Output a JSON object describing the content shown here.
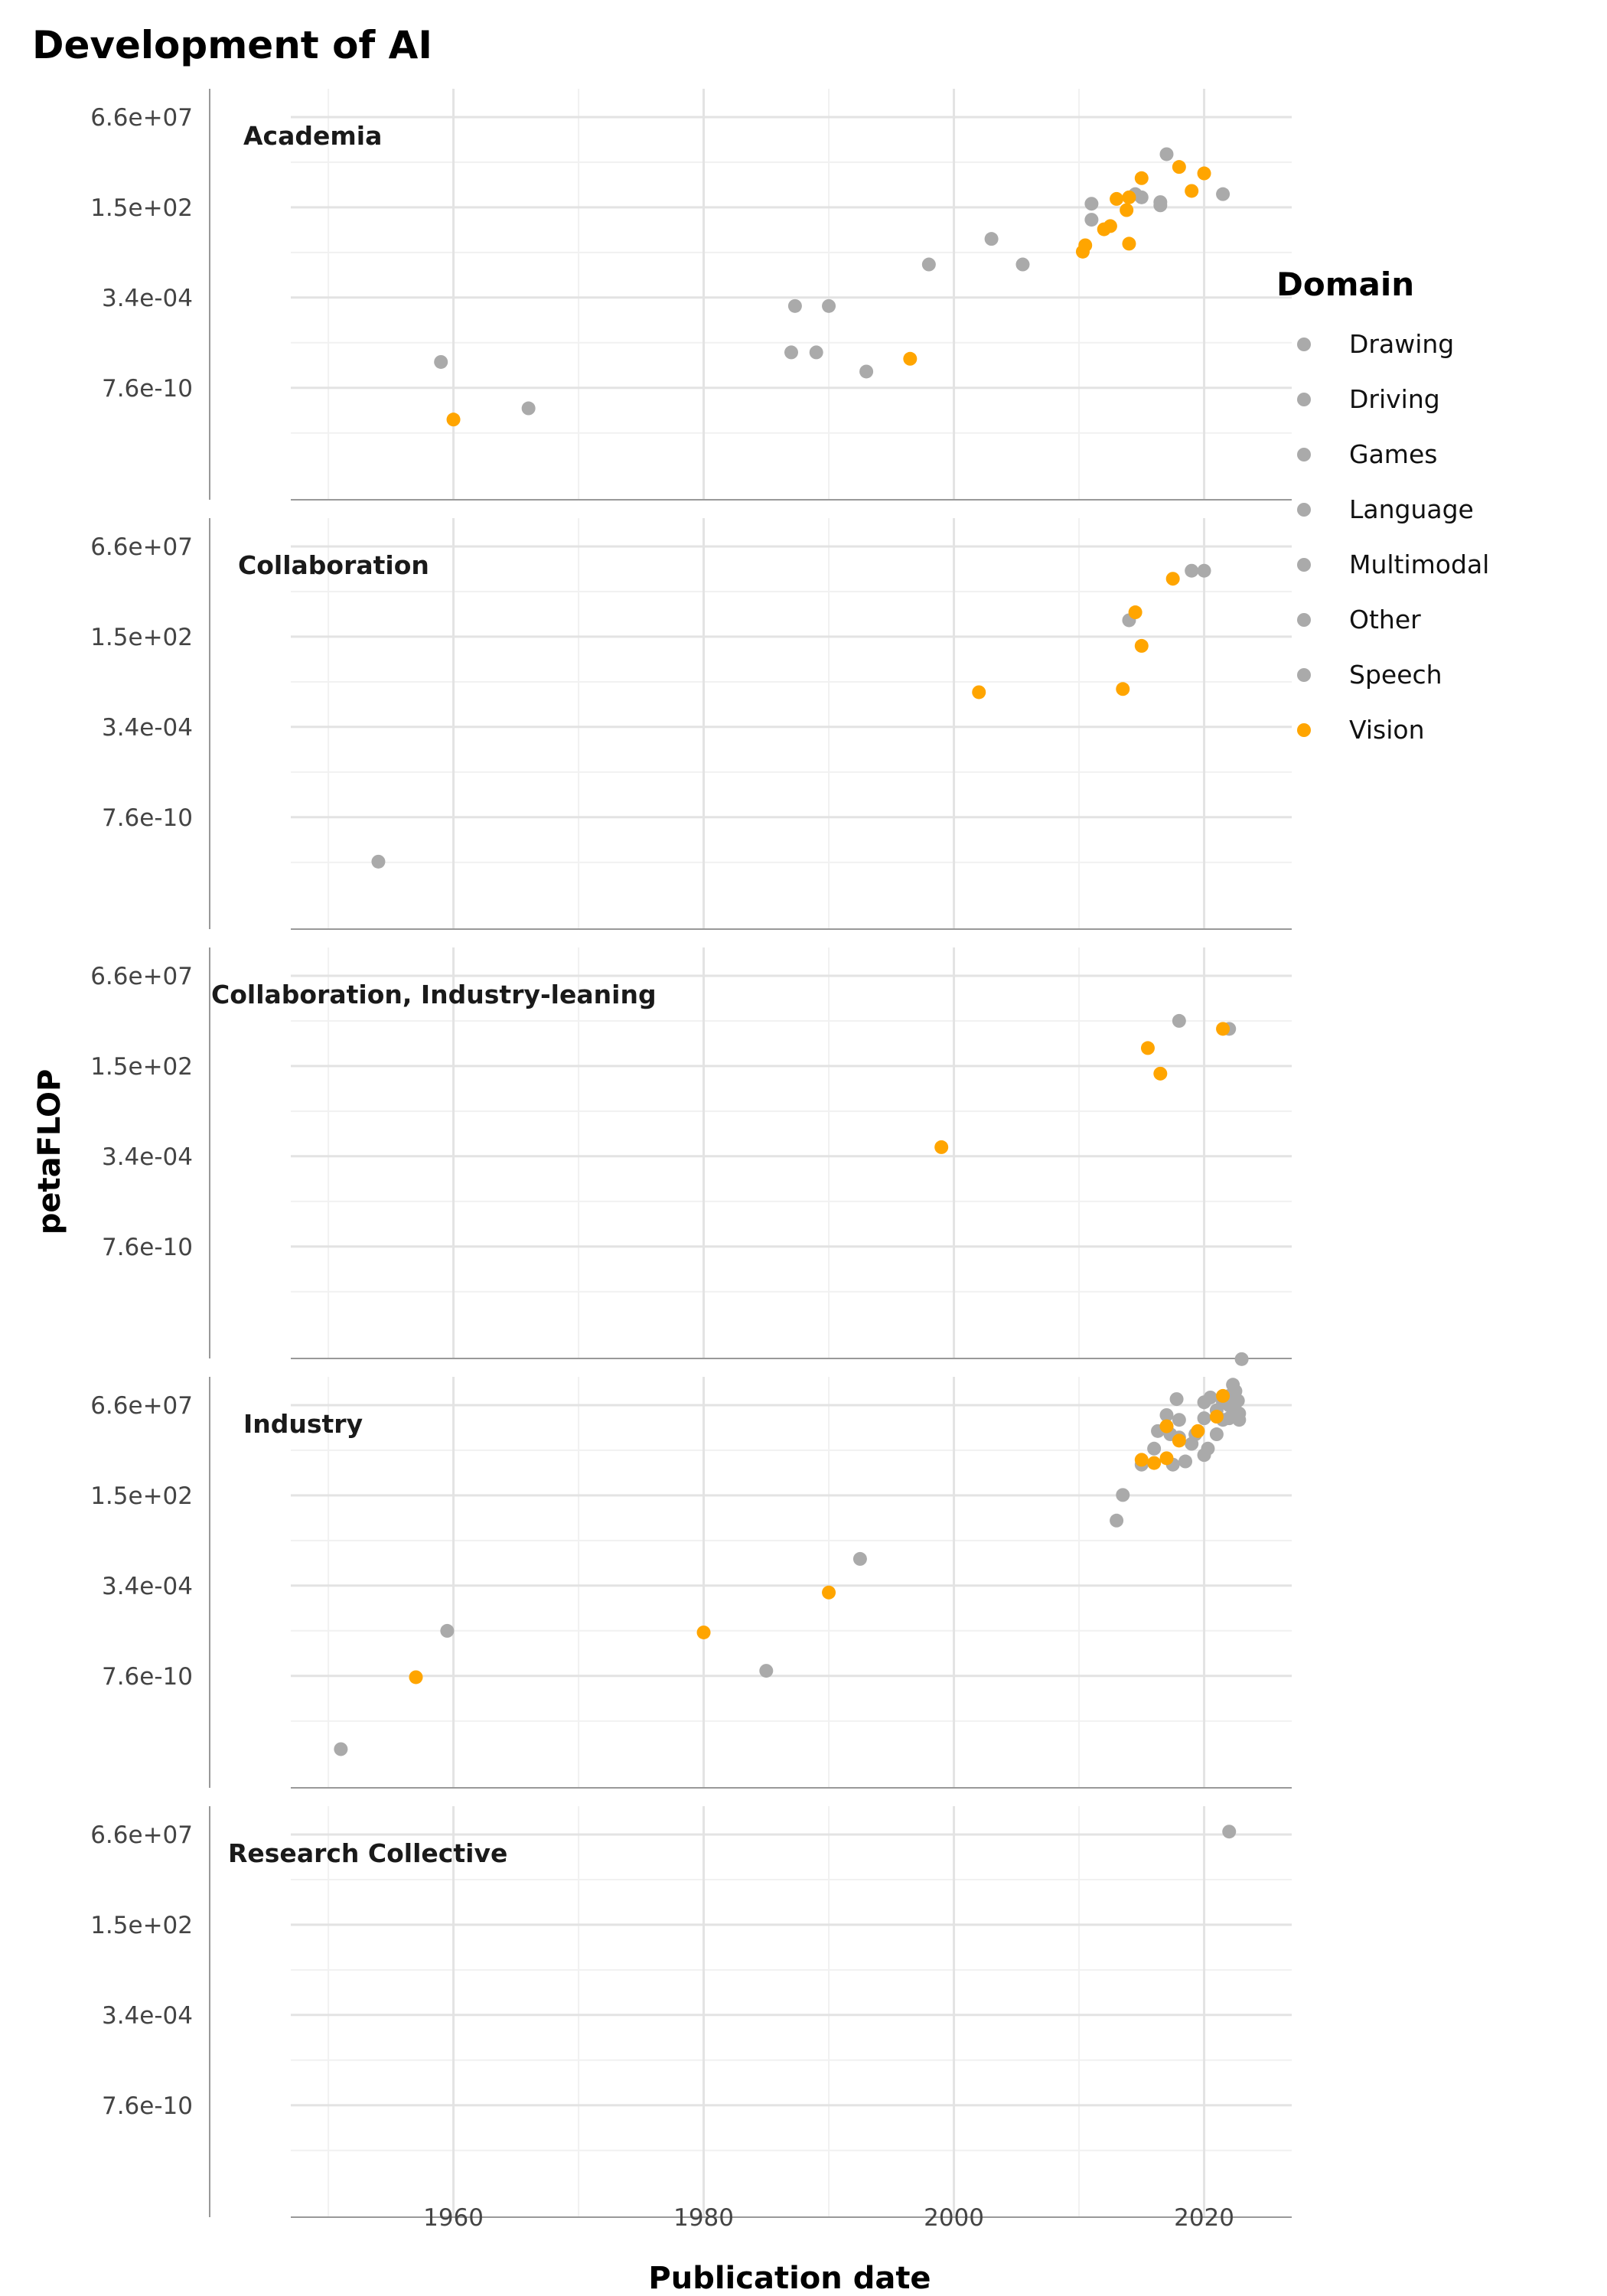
{
  "chart_data": {
    "type": "scatter",
    "title": "Development of AI",
    "xlabel": "Publication date",
    "ylabel": "petaFLOP",
    "y_scale": "log10",
    "xlim": [
      1947,
      2027
    ],
    "x_ticks": [
      1960,
      1980,
      2000,
      2020
    ],
    "y_ticks": [
      {
        "label": "7.6e-10",
        "log10": -9.119
      },
      {
        "label": "3.4e-04",
        "log10": -3.469
      },
      {
        "label": "1.5e+02",
        "log10": 2.176
      },
      {
        "label": "6.6e+07",
        "log10": 7.82
      }
    ],
    "grid": true,
    "legend": {
      "title": "Domain",
      "position": "right",
      "entries": [
        {
          "name": "Drawing",
          "color": "#AAAAAA"
        },
        {
          "name": "Driving",
          "color": "#AAAAAA"
        },
        {
          "name": "Games",
          "color": "#AAAAAA"
        },
        {
          "name": "Language",
          "color": "#AAAAAA"
        },
        {
          "name": "Multimodal",
          "color": "#AAAAAA"
        },
        {
          "name": "Other",
          "color": "#AAAAAA"
        },
        {
          "name": "Speech",
          "color": "#AAAAAA"
        },
        {
          "name": "Vision",
          "color": "#FFA500"
        }
      ]
    },
    "colors": {
      "grey": "#AAAAAA",
      "vision": "#FFA500"
    },
    "facets": [
      {
        "label": "Academia",
        "grey_points": [
          [
            1959,
            -7.5
          ],
          [
            1966,
            -10.4
          ],
          [
            1987,
            -6.9
          ],
          [
            1987.3,
            -4.0
          ],
          [
            1989,
            -6.9
          ],
          [
            1990,
            -4.0
          ],
          [
            1993,
            -8.1
          ],
          [
            1998,
            -1.4
          ],
          [
            2003,
            0.2
          ],
          [
            2005.5,
            -1.4
          ],
          [
            2011,
            1.4
          ],
          [
            2011,
            2.4
          ],
          [
            2014.5,
            3.0
          ],
          [
            2015,
            2.8
          ],
          [
            2016.5,
            2.3
          ],
          [
            2016.5,
            2.5
          ],
          [
            2017,
            5.5
          ],
          [
            2021.5,
            3.0
          ]
        ],
        "vision_points": [
          [
            1960,
            -11.1
          ],
          [
            1996.5,
            -7.3
          ],
          [
            2010.3,
            -0.6
          ],
          [
            2010.5,
            -0.2
          ],
          [
            2012,
            0.8
          ],
          [
            2012.5,
            1.0
          ],
          [
            2013,
            2.7
          ],
          [
            2013.8,
            2.0
          ],
          [
            2014,
            2.8
          ],
          [
            2014,
            -0.1
          ],
          [
            2015,
            4.0
          ],
          [
            2018,
            4.7
          ],
          [
            2019,
            3.2
          ],
          [
            2020,
            4.3
          ]
        ]
      },
      {
        "label": "Collaboration",
        "grey_points": [
          [
            1954,
            -11.9
          ],
          [
            2014,
            3.2
          ],
          [
            2019,
            6.3
          ],
          [
            2020,
            6.3
          ]
        ],
        "vision_points": [
          [
            2002,
            -1.3
          ],
          [
            2013.5,
            -1.1
          ],
          [
            2014.5,
            3.7
          ],
          [
            2015,
            1.6
          ],
          [
            2017.5,
            5.8
          ]
        ]
      },
      {
        "label": "Collaboration, Industry-leaning",
        "grey_points": [
          [
            2018,
            5.0
          ],
          [
            2022,
            4.5
          ]
        ],
        "vision_points": [
          [
            1999,
            -2.9
          ],
          [
            2015.5,
            3.3
          ],
          [
            2016.5,
            1.7
          ],
          [
            2021.5,
            4.5
          ]
        ]
      },
      {
        "label": "Industry",
        "grey_points": [
          [
            1951,
            -13.7
          ],
          [
            1959.5,
            -6.3
          ],
          [
            1985,
            -8.8
          ],
          [
            1992.5,
            -1.8
          ],
          [
            2013,
            0.6
          ],
          [
            2013.5,
            2.2
          ],
          [
            2015,
            4.1
          ],
          [
            2016,
            5.1
          ],
          [
            2016.3,
            6.2
          ],
          [
            2017,
            7.2
          ],
          [
            2017,
            6.4
          ],
          [
            2017.3,
            6.0
          ],
          [
            2017.5,
            4.1
          ],
          [
            2017.8,
            8.2
          ],
          [
            2018,
            6.9
          ],
          [
            2018,
            5.8
          ],
          [
            2018.5,
            4.3
          ],
          [
            2019,
            5.4
          ],
          [
            2019.3,
            6.0
          ],
          [
            2020,
            8.0
          ],
          [
            2020,
            7.0
          ],
          [
            2020,
            4.7
          ],
          [
            2020.3,
            5.1
          ],
          [
            2020.5,
            8.3
          ],
          [
            2021,
            6.0
          ],
          [
            2021,
            7.5
          ],
          [
            2021.5,
            8.0
          ],
          [
            2021.5,
            6.9
          ],
          [
            2022,
            7.8
          ],
          [
            2022,
            8.4
          ],
          [
            2022,
            7.0
          ],
          [
            2022.3,
            9.1
          ],
          [
            2022.5,
            8.7
          ],
          [
            2022.5,
            7.5
          ],
          [
            2022.7,
            8.1
          ],
          [
            2023,
            10.7
          ],
          [
            2022.8,
            7.3
          ],
          [
            2022.8,
            6.9
          ]
        ],
        "vision_points": [
          [
            1957,
            -9.2
          ],
          [
            1980,
            -6.4
          ],
          [
            1990,
            -3.9
          ],
          [
            2015,
            4.4
          ],
          [
            2016,
            4.2
          ],
          [
            2017,
            4.5
          ],
          [
            2017,
            6.5
          ],
          [
            2018,
            5.6
          ],
          [
            2019.5,
            6.2
          ],
          [
            2021,
            7.1
          ],
          [
            2021.5,
            8.4
          ]
        ]
      },
      {
        "label": "Research Collective",
        "grey_points": [
          [
            2022,
            8.0
          ]
        ],
        "vision_points": []
      }
    ]
  }
}
